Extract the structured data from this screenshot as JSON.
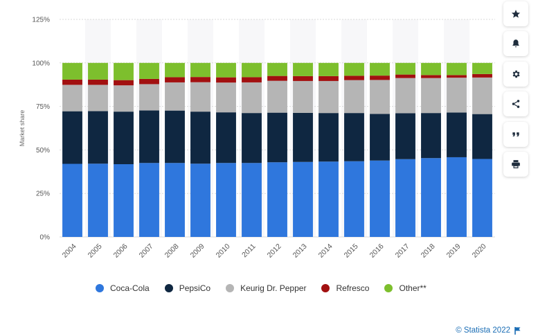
{
  "chart_data": {
    "type": "bar",
    "stacked": true,
    "ylabel": "Market share",
    "ylim": [
      0,
      125
    ],
    "yticks": [
      "0%",
      "25%",
      "50%",
      "75%",
      "100%",
      "125%"
    ],
    "ytick_values": [
      0,
      25,
      50,
      75,
      100,
      125
    ],
    "grid": "horizontal dashed",
    "legend_position": "bottom",
    "categories": [
      "2004",
      "2005",
      "2006",
      "2007",
      "2008",
      "2009",
      "2010",
      "2011",
      "2012",
      "2013",
      "2014",
      "2015",
      "2016",
      "2017",
      "2018",
      "2019",
      "2020"
    ],
    "series": [
      {
        "name": "Coca-Cola",
        "color": "#2f77dd",
        "values": [
          42.0,
          42.1,
          41.8,
          42.5,
          42.5,
          42.1,
          42.5,
          42.5,
          42.9,
          43.1,
          43.3,
          43.5,
          43.9,
          44.7,
          45.3,
          45.8,
          44.8
        ]
      },
      {
        "name": "PepsiCo",
        "color": "#0f2741",
        "values": [
          30.2,
          30.2,
          30.2,
          30.2,
          30.1,
          29.9,
          29.1,
          28.7,
          28.5,
          28.2,
          27.9,
          27.7,
          26.8,
          26.4,
          25.9,
          25.7,
          25.8
        ]
      },
      {
        "name": "Keurig Dr. Pepper",
        "color": "#b5b5b5",
        "values": [
          15.2,
          15.1,
          15.1,
          15.1,
          16.2,
          16.9,
          17.1,
          17.6,
          18.3,
          18.3,
          18.4,
          18.9,
          19.5,
          20.2,
          20.1,
          20.0,
          21.0
        ]
      },
      {
        "name": "Refresco",
        "color": "#a21010",
        "values": [
          3.0,
          3.0,
          3.0,
          3.0,
          3.0,
          3.0,
          3.0,
          3.0,
          2.8,
          2.8,
          2.8,
          2.5,
          2.5,
          2.0,
          1.7,
          1.5,
          2.0
        ]
      },
      {
        "name": "Other**",
        "color": "#7dbf2d",
        "values": [
          9.6,
          9.6,
          9.9,
          9.2,
          8.2,
          8.1,
          8.3,
          8.2,
          7.5,
          7.6,
          7.6,
          7.4,
          7.3,
          6.7,
          7.0,
          7.0,
          6.4
        ]
      }
    ]
  },
  "toolbar": {
    "icons": [
      "star-icon",
      "bell-icon",
      "gear-icon",
      "share-icon",
      "quote-icon",
      "print-icon"
    ]
  },
  "credit": {
    "text": "© Statista 2022"
  }
}
